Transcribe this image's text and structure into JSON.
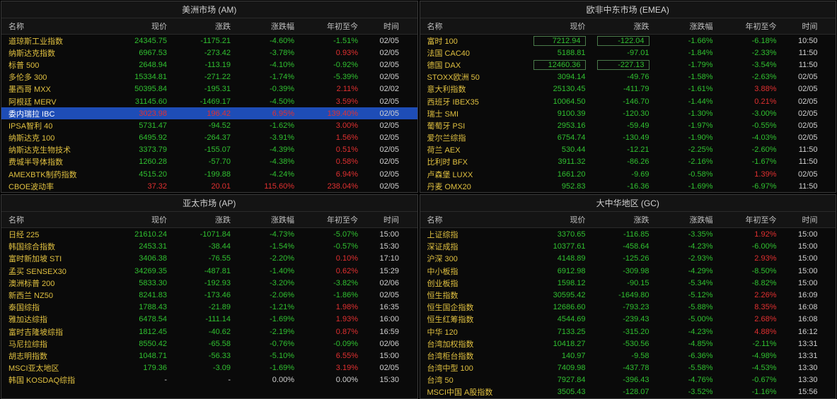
{
  "colors": {
    "up": "#e03030",
    "down": "#30c030",
    "neutral": "#d0d0d0",
    "name": "#e0c040",
    "time": "#d0d0d0"
  },
  "headers": [
    "名称",
    "现价",
    "涨跌",
    "涨跌幅",
    "年初至今",
    "时间"
  ],
  "panels": [
    {
      "title": "美洲市场 (AM)",
      "rows": [
        {
          "name": "道琼斯工业指数",
          "price": "24345.75",
          "chg": "-1175.21",
          "pct": "-4.60%",
          "ytd": "-1.51%",
          "time": "02/05",
          "c": [
            "down",
            "down",
            "down",
            "down"
          ]
        },
        {
          "name": "纳斯达克指数",
          "price": "6967.53",
          "chg": "-273.42",
          "pct": "-3.78%",
          "ytd": "0.93%",
          "time": "02/05",
          "c": [
            "down",
            "down",
            "down",
            "up"
          ]
        },
        {
          "name": "标普 500",
          "price": "2648.94",
          "chg": "-113.19",
          "pct": "-4.10%",
          "ytd": "-0.92%",
          "time": "02/05",
          "c": [
            "down",
            "down",
            "down",
            "down"
          ]
        },
        {
          "name": "多伦多 300",
          "price": "15334.81",
          "chg": "-271.22",
          "pct": "-1.74%",
          "ytd": "-5.39%",
          "time": "02/05",
          "c": [
            "down",
            "down",
            "down",
            "down"
          ]
        },
        {
          "name": "墨西哥 MXX",
          "price": "50395.84",
          "chg": "-195.31",
          "pct": "-0.39%",
          "ytd": "2.11%",
          "time": "02/02",
          "c": [
            "down",
            "down",
            "down",
            "up"
          ]
        },
        {
          "name": "阿根廷 MERV",
          "price": "31145.60",
          "chg": "-1469.17",
          "pct": "-4.50%",
          "ytd": "3.59%",
          "time": "02/05",
          "c": [
            "down",
            "down",
            "down",
            "up"
          ]
        },
        {
          "name": "委内瑞拉 IBC",
          "price": "3023.98",
          "chg": "196.42",
          "pct": "6.95%",
          "ytd": "139.40%",
          "time": "02/05",
          "c": [
            "up",
            "up",
            "up",
            "up"
          ],
          "sel": true
        },
        {
          "name": "IPSA智利 40",
          "price": "5731.47",
          "chg": "-94.52",
          "pct": "-1.62%",
          "ytd": "3.00%",
          "time": "02/05",
          "c": [
            "down",
            "down",
            "down",
            "up"
          ]
        },
        {
          "name": "纳斯达克 100",
          "price": "6495.92",
          "chg": "-264.37",
          "pct": "-3.91%",
          "ytd": "1.56%",
          "time": "02/05",
          "c": [
            "down",
            "down",
            "down",
            "up"
          ]
        },
        {
          "name": "纳斯达克生物技术",
          "price": "3373.79",
          "chg": "-155.07",
          "pct": "-4.39%",
          "ytd": "0.51%",
          "time": "02/05",
          "c": [
            "down",
            "down",
            "down",
            "up"
          ]
        },
        {
          "name": "费城半导体指数",
          "price": "1260.28",
          "chg": "-57.70",
          "pct": "-4.38%",
          "ytd": "0.58%",
          "time": "02/05",
          "c": [
            "down",
            "down",
            "down",
            "up"
          ]
        },
        {
          "name": "AMEXBTK制药指数",
          "price": "4515.20",
          "chg": "-199.88",
          "pct": "-4.24%",
          "ytd": "6.94%",
          "time": "02/05",
          "c": [
            "down",
            "down",
            "down",
            "up"
          ]
        },
        {
          "name": "CBOE波动率",
          "price": "37.32",
          "chg": "20.01",
          "pct": "115.60%",
          "ytd": "238.04%",
          "time": "02/05",
          "c": [
            "up",
            "up",
            "up",
            "up"
          ]
        }
      ]
    },
    {
      "title": "欧非中东市场 (EMEA)",
      "rows": [
        {
          "name": "富时 100",
          "price": "7212.94",
          "chg": "-122.04",
          "pct": "-1.66%",
          "ytd": "-6.18%",
          "time": "10:50",
          "c": [
            "down",
            "down",
            "down",
            "down"
          ],
          "boxed": true
        },
        {
          "name": "法国 CAC40",
          "price": "5188.81",
          "chg": "-97.01",
          "pct": "-1.84%",
          "ytd": "-2.33%",
          "time": "11:50",
          "c": [
            "down",
            "down",
            "down",
            "down"
          ]
        },
        {
          "name": "德国 DAX",
          "price": "12460.36",
          "chg": "-227.13",
          "pct": "-1.79%",
          "ytd": "-3.54%",
          "time": "11:50",
          "c": [
            "down",
            "down",
            "down",
            "down"
          ],
          "boxed": true
        },
        {
          "name": "STOXX欧洲 50",
          "price": "3094.14",
          "chg": "-49.76",
          "pct": "-1.58%",
          "ytd": "-2.63%",
          "time": "02/05",
          "c": [
            "down",
            "down",
            "down",
            "down"
          ]
        },
        {
          "name": "意大利指数",
          "price": "25130.45",
          "chg": "-411.79",
          "pct": "-1.61%",
          "ytd": "3.88%",
          "time": "02/05",
          "c": [
            "down",
            "down",
            "down",
            "up"
          ]
        },
        {
          "name": "西班牙 IBEX35",
          "price": "10064.50",
          "chg": "-146.70",
          "pct": "-1.44%",
          "ytd": "0.21%",
          "time": "02/05",
          "c": [
            "down",
            "down",
            "down",
            "up"
          ]
        },
        {
          "name": "瑞士 SMI",
          "price": "9100.39",
          "chg": "-120.30",
          "pct": "-1.30%",
          "ytd": "-3.00%",
          "time": "02/05",
          "c": [
            "down",
            "down",
            "down",
            "down"
          ]
        },
        {
          "name": "葡萄牙 PSI",
          "price": "2953.16",
          "chg": "-59.49",
          "pct": "-1.97%",
          "ytd": "-0.55%",
          "time": "02/05",
          "c": [
            "down",
            "down",
            "down",
            "down"
          ]
        },
        {
          "name": "爱尔兰综指",
          "price": "6754.74",
          "chg": "-130.49",
          "pct": "-1.90%",
          "ytd": "-4.03%",
          "time": "02/05",
          "c": [
            "down",
            "down",
            "down",
            "down"
          ]
        },
        {
          "name": "荷兰 AEX",
          "price": "530.44",
          "chg": "-12.21",
          "pct": "-2.25%",
          "ytd": "-2.60%",
          "time": "11:50",
          "c": [
            "down",
            "down",
            "down",
            "down"
          ]
        },
        {
          "name": "比利时 BFX",
          "price": "3911.32",
          "chg": "-86.26",
          "pct": "-2.16%",
          "ytd": "-1.67%",
          "time": "11:50",
          "c": [
            "down",
            "down",
            "down",
            "down"
          ]
        },
        {
          "name": "卢森堡 LUXX",
          "price": "1661.20",
          "chg": "-9.69",
          "pct": "-0.58%",
          "ytd": "1.39%",
          "time": "02/05",
          "c": [
            "down",
            "down",
            "down",
            "up"
          ]
        },
        {
          "name": "丹麦 OMX20",
          "price": "952.83",
          "chg": "-16.36",
          "pct": "-1.69%",
          "ytd": "-6.97%",
          "time": "11:50",
          "c": [
            "down",
            "down",
            "down",
            "down"
          ]
        }
      ]
    },
    {
      "title": "亚太市场 (AP)",
      "rows": [
        {
          "name": "日经 225",
          "price": "21610.24",
          "chg": "-1071.84",
          "pct": "-4.73%",
          "ytd": "-5.07%",
          "time": "15:00",
          "c": [
            "down",
            "down",
            "down",
            "down"
          ]
        },
        {
          "name": "韩国综合指数",
          "price": "2453.31",
          "chg": "-38.44",
          "pct": "-1.54%",
          "ytd": "-0.57%",
          "time": "15:30",
          "c": [
            "down",
            "down",
            "down",
            "down"
          ]
        },
        {
          "name": "富时新加坡 STI",
          "price": "3406.38",
          "chg": "-76.55",
          "pct": "-2.20%",
          "ytd": "0.10%",
          "time": "17:10",
          "c": [
            "down",
            "down",
            "down",
            "up"
          ]
        },
        {
          "name": "孟买 SENSEX30",
          "price": "34269.35",
          "chg": "-487.81",
          "pct": "-1.40%",
          "ytd": "0.62%",
          "time": "15:29",
          "c": [
            "down",
            "down",
            "down",
            "up"
          ]
        },
        {
          "name": "澳洲标普 200",
          "price": "5833.30",
          "chg": "-192.93",
          "pct": "-3.20%",
          "ytd": "-3.82%",
          "time": "02/06",
          "c": [
            "down",
            "down",
            "down",
            "down"
          ]
        },
        {
          "name": "新西兰 NZ50",
          "price": "8241.83",
          "chg": "-173.46",
          "pct": "-2.06%",
          "ytd": "-1.86%",
          "time": "02/05",
          "c": [
            "down",
            "down",
            "down",
            "down"
          ]
        },
        {
          "name": "泰国综指",
          "price": "1788.43",
          "chg": "-21.89",
          "pct": "-1.21%",
          "ytd": "1.98%",
          "time": "16:35",
          "c": [
            "down",
            "down",
            "down",
            "up"
          ]
        },
        {
          "name": "雅加达综指",
          "price": "6478.54",
          "chg": "-111.14",
          "pct": "-1.69%",
          "ytd": "1.93%",
          "time": "16:00",
          "c": [
            "down",
            "down",
            "down",
            "up"
          ]
        },
        {
          "name": "富时吉隆坡综指",
          "price": "1812.45",
          "chg": "-40.62",
          "pct": "-2.19%",
          "ytd": "0.87%",
          "time": "16:59",
          "c": [
            "down",
            "down",
            "down",
            "up"
          ]
        },
        {
          "name": "马尼拉综指",
          "price": "8550.42",
          "chg": "-65.58",
          "pct": "-0.76%",
          "ytd": "-0.09%",
          "time": "02/06",
          "c": [
            "down",
            "down",
            "down",
            "down"
          ]
        },
        {
          "name": "胡志明指数",
          "price": "1048.71",
          "chg": "-56.33",
          "pct": "-5.10%",
          "ytd": "6.55%",
          "time": "15:00",
          "c": [
            "down",
            "down",
            "down",
            "up"
          ]
        },
        {
          "name": "MSCI亚太地区",
          "price": "179.36",
          "chg": "-3.09",
          "pct": "-1.69%",
          "ytd": "3.19%",
          "time": "02/05",
          "c": [
            "down",
            "down",
            "down",
            "up"
          ]
        },
        {
          "name": "韩国 KOSDAQ综指",
          "price": "-",
          "chg": "-",
          "pct": "0.00%",
          "ytd": "0.00%",
          "time": "15:30",
          "c": [
            "neutral",
            "neutral",
            "neutral",
            "neutral"
          ]
        }
      ]
    },
    {
      "title": "大中华地区 (GC)",
      "rows": [
        {
          "name": "上证综指",
          "price": "3370.65",
          "chg": "-116.85",
          "pct": "-3.35%",
          "ytd": "1.92%",
          "time": "15:00",
          "c": [
            "down",
            "down",
            "down",
            "up"
          ]
        },
        {
          "name": "深证成指",
          "price": "10377.61",
          "chg": "-458.64",
          "pct": "-4.23%",
          "ytd": "-6.00%",
          "time": "15:00",
          "c": [
            "down",
            "down",
            "down",
            "down"
          ]
        },
        {
          "name": "沪深 300",
          "price": "4148.89",
          "chg": "-125.26",
          "pct": "-2.93%",
          "ytd": "2.93%",
          "time": "15:00",
          "c": [
            "down",
            "down",
            "down",
            "up"
          ]
        },
        {
          "name": "中小板指",
          "price": "6912.98",
          "chg": "-309.98",
          "pct": "-4.29%",
          "ytd": "-8.50%",
          "time": "15:00",
          "c": [
            "down",
            "down",
            "down",
            "down"
          ]
        },
        {
          "name": "创业板指",
          "price": "1598.12",
          "chg": "-90.15",
          "pct": "-5.34%",
          "ytd": "-8.82%",
          "time": "15:00",
          "c": [
            "down",
            "down",
            "down",
            "down"
          ]
        },
        {
          "name": "恒生指数",
          "price": "30595.42",
          "chg": "-1649.80",
          "pct": "-5.12%",
          "ytd": "2.26%",
          "time": "16:09",
          "c": [
            "down",
            "down",
            "down",
            "up"
          ]
        },
        {
          "name": "恒生国企指数",
          "price": "12686.60",
          "chg": "-793.23",
          "pct": "-5.88%",
          "ytd": "8.35%",
          "time": "16:08",
          "c": [
            "down",
            "down",
            "down",
            "up"
          ]
        },
        {
          "name": "恒生红筹指数",
          "price": "4544.69",
          "chg": "-239.43",
          "pct": "-5.00%",
          "ytd": "2.68%",
          "time": "16:08",
          "c": [
            "down",
            "down",
            "down",
            "up"
          ]
        },
        {
          "name": "中华 120",
          "price": "7133.25",
          "chg": "-315.20",
          "pct": "-4.23%",
          "ytd": "4.88%",
          "time": "16:12",
          "c": [
            "down",
            "down",
            "down",
            "up"
          ]
        },
        {
          "name": "台湾加权指数",
          "price": "10418.27",
          "chg": "-530.56",
          "pct": "-4.85%",
          "ytd": "-2.11%",
          "time": "13:31",
          "c": [
            "down",
            "down",
            "down",
            "down"
          ]
        },
        {
          "name": "台湾柜台指数",
          "price": "140.97",
          "chg": "-9.58",
          "pct": "-6.36%",
          "ytd": "-4.98%",
          "time": "13:31",
          "c": [
            "down",
            "down",
            "down",
            "down"
          ]
        },
        {
          "name": "台湾中型 100",
          "price": "7409.98",
          "chg": "-437.78",
          "pct": "-5.58%",
          "ytd": "-4.53%",
          "time": "13:30",
          "c": [
            "down",
            "down",
            "down",
            "down"
          ]
        },
        {
          "name": "台湾 50",
          "price": "7927.84",
          "chg": "-396.43",
          "pct": "-4.76%",
          "ytd": "-0.67%",
          "time": "13:30",
          "c": [
            "down",
            "down",
            "down",
            "down"
          ]
        },
        {
          "name": "MSCI中国 A股指数",
          "price": "3505.43",
          "chg": "-128.07",
          "pct": "-3.52%",
          "ytd": "-1.16%",
          "time": "15:56",
          "c": [
            "down",
            "down",
            "down",
            "down"
          ]
        }
      ]
    }
  ]
}
